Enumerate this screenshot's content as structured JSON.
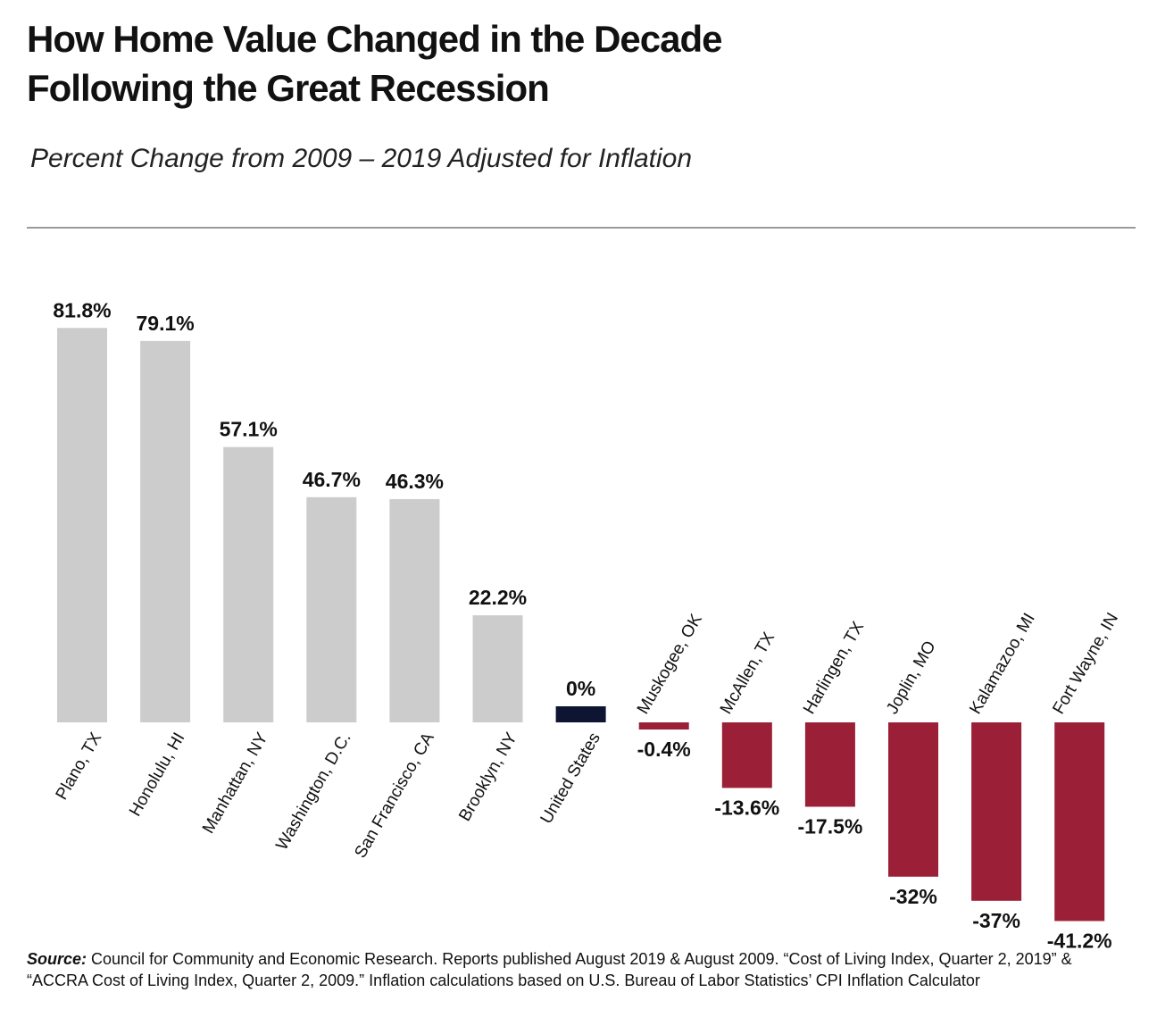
{
  "header": {
    "title_line1": "How Home Value Changed in the Decade",
    "title_line2": "Following the Great Recession",
    "subtitle": "Percent Change from 2009 – 2019 Adjusted for Inflation"
  },
  "footer": {
    "source_label": "Source:",
    "source_text": " Council for Community and Economic Research. Reports published August 2019 & August 2009. “Cost of Living Index, Quarter 2, 2019” & “ACCRA Cost of Living Index, Quarter 2, 2009.” Inflation calculations based on U.S. Bureau of Labor Statistics’ CPI Inflation Calculator"
  },
  "colors": {
    "positive": "#cccccc",
    "neutral": "#0d1533",
    "negative": "#9b1f37"
  },
  "chart_data": {
    "type": "bar",
    "title": "How Home Value Changed in the Decade Following the Great Recession",
    "subtitle": "Percent Change from 2009 – 2019 Adjusted for Inflation",
    "xlabel": "",
    "ylabel": "",
    "grid": false,
    "ylim": [
      -45,
      85
    ],
    "categories": [
      "Plano, TX",
      "Honolulu, HI",
      "Manhattan, NY",
      "Washington, D.C.",
      "San Francisco, CA",
      "Brooklyn, NY",
      "United States",
      "Muskogee, OK",
      "McAllen, TX",
      "Harlingen, TX",
      "Joplin, MO",
      "Kalamazoo, MI",
      "Fort Wayne, IN"
    ],
    "values": [
      81.8,
      79.1,
      57.1,
      46.7,
      46.3,
      22.2,
      0,
      -0.4,
      -13.6,
      -17.5,
      -32,
      -37,
      -41.2
    ],
    "value_labels": [
      "81.8%",
      "79.1%",
      "57.1%",
      "46.7%",
      "46.3%",
      "22.2%",
      "0%",
      "-0.4%",
      "-13.6%",
      "-17.5%",
      "-32%",
      "-37%",
      "-41.2%"
    ]
  }
}
